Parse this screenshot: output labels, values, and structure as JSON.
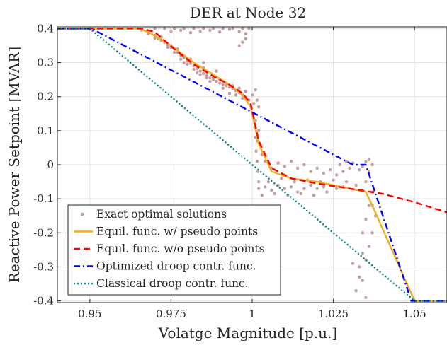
{
  "chart_data": {
    "type": "line",
    "title": "DER at Node 32",
    "xlabel": "Volatge Magnitude [p.u.]",
    "ylabel": "Reactive Power Setpoint [MVAR]",
    "xlim": [
      0.94,
      1.06
    ],
    "ylim": [
      -0.405,
      0.405
    ],
    "xticks": [
      0.95,
      0.975,
      1,
      1.025,
      1.05
    ],
    "xtick_labels": [
      "0.95",
      "0.975",
      "1",
      "1.025",
      "1.05"
    ],
    "yticks": [
      0.4,
      0.3,
      0.2,
      0.1,
      0,
      -0.1,
      -0.2,
      -0.3,
      -0.4
    ],
    "ytick_labels": [
      "0.4",
      "0.3",
      "0.2",
      "0.1",
      "0",
      "-0.1",
      "-0.2",
      "-0.3",
      "-0.4"
    ],
    "grid": true,
    "legend_position": "bottom-left",
    "series": [
      {
        "name": "Exact optimal solutions",
        "kind": "scatter",
        "color": "#C49C9C",
        "points": [
          [
            0.966,
            0.395
          ],
          [
            0.968,
            0.385
          ],
          [
            0.97,
            0.38
          ],
          [
            0.971,
            0.37
          ],
          [
            0.972,
            0.365
          ],
          [
            0.973,
            0.36
          ],
          [
            0.974,
            0.352
          ],
          [
            0.975,
            0.345
          ],
          [
            0.976,
            0.34
          ],
          [
            0.977,
            0.33
          ],
          [
            0.978,
            0.322
          ],
          [
            0.979,
            0.315
          ],
          [
            0.98,
            0.305
          ],
          [
            0.981,
            0.298
          ],
          [
            0.982,
            0.29
          ],
          [
            0.983,
            0.282
          ],
          [
            0.984,
            0.275
          ],
          [
            0.985,
            0.268
          ],
          [
            0.986,
            0.262
          ],
          [
            0.987,
            0.255
          ],
          [
            0.988,
            0.25
          ],
          [
            0.989,
            0.245
          ],
          [
            0.99,
            0.24
          ],
          [
            0.991,
            0.236
          ],
          [
            0.992,
            0.232
          ],
          [
            0.993,
            0.228
          ],
          [
            0.994,
            0.224
          ],
          [
            0.995,
            0.218
          ],
          [
            0.996,
            0.212
          ],
          [
            0.997,
            0.205
          ],
          [
            0.998,
            0.198
          ],
          [
            0.999,
            0.19
          ],
          [
            0.97,
            0.372
          ],
          [
            0.974,
            0.345
          ],
          [
            0.976,
            0.33
          ],
          [
            0.978,
            0.31
          ],
          [
            0.98,
            0.295
          ],
          [
            0.982,
            0.28
          ],
          [
            0.984,
            0.265
          ],
          [
            0.986,
            0.255
          ],
          [
            0.988,
            0.258
          ],
          [
            0.99,
            0.25
          ],
          [
            0.992,
            0.24
          ],
          [
            0.994,
            0.232
          ],
          [
            0.996,
            0.225
          ],
          [
            0.998,
            0.215
          ],
          [
            0.979,
            0.3
          ],
          [
            0.983,
            0.27
          ],
          [
            0.987,
            0.245
          ],
          [
            0.991,
            0.225
          ],
          [
            0.993,
            0.21
          ],
          [
            0.995,
            0.205
          ],
          [
            0.997,
            0.195
          ],
          [
            0.985,
            0.3
          ],
          [
            0.989,
            0.275
          ],
          [
            0.975,
            0.35
          ],
          [
            0.972,
            0.375
          ],
          [
            0.977,
            0.34
          ],
          [
            0.981,
            0.31
          ],
          [
            0.985,
            0.285
          ],
          [
            0.97,
            0.4
          ],
          [
            0.973,
            0.4
          ],
          [
            0.976,
            0.4
          ],
          [
            0.979,
            0.4
          ],
          [
            0.982,
            0.4
          ],
          [
            0.985,
            0.4
          ],
          [
            0.988,
            0.4
          ],
          [
            0.991,
            0.4
          ],
          [
            0.994,
            0.4
          ],
          [
            0.997,
            0.4
          ],
          [
            0.999,
            0.4
          ],
          [
            0.975,
            0.392
          ],
          [
            0.978,
            0.395
          ],
          [
            0.981,
            0.388
          ],
          [
            0.984,
            0.392
          ],
          [
            0.987,
            0.395
          ],
          [
            0.99,
            0.39
          ],
          [
            0.993,
            0.398
          ],
          [
            0.996,
            0.392
          ],
          [
            0.998,
            0.385
          ],
          [
            0.997,
            0.36
          ],
          [
            0.996,
            0.35
          ],
          [
            0.998,
            0.37
          ],
          [
            1.0005,
            0.15
          ],
          [
            1.0008,
            0.11
          ],
          [
            1.001,
            0.08
          ],
          [
            1.0012,
            0.04
          ],
          [
            1.0015,
            0.01
          ],
          [
            1.0018,
            -0.02
          ],
          [
            1.002,
            -0.05
          ],
          [
            1.0015,
            0.07
          ],
          [
            1.001,
            0.13
          ],
          [
            1.002,
            0.1
          ],
          [
            1.001,
            0.22
          ],
          [
            1.0015,
            0.19
          ],
          [
            1.002,
            0.17
          ],
          [
            1.0,
            0.205
          ],
          [
            1.0025,
            0.06
          ],
          [
            1.003,
            0.03
          ],
          [
            1.0005,
            0.18
          ],
          [
            1.002,
            -0.07
          ],
          [
            1.004,
            -0.065
          ],
          [
            1.006,
            -0.075
          ],
          [
            1.008,
            -0.06
          ],
          [
            1.01,
            -0.07
          ],
          [
            1.012,
            -0.065
          ],
          [
            1.014,
            -0.08
          ],
          [
            1.016,
            -0.07
          ],
          [
            1.018,
            -0.06
          ],
          [
            1.02,
            -0.07
          ],
          [
            1.022,
            -0.065
          ],
          [
            1.024,
            -0.06
          ],
          [
            1.026,
            -0.07
          ],
          [
            1.028,
            -0.065
          ],
          [
            1.003,
            -0.09
          ],
          [
            1.007,
            -0.085
          ],
          [
            1.011,
            -0.09
          ],
          [
            1.015,
            -0.085
          ],
          [
            1.019,
            -0.09
          ],
          [
            1.023,
            -0.08
          ],
          [
            1.005,
            -0.05
          ],
          [
            1.009,
            -0.04
          ],
          [
            1.013,
            -0.05
          ],
          [
            1.017,
            -0.045
          ],
          [
            1.021,
            -0.05
          ],
          [
            1.025,
            -0.045
          ],
          [
            1.029,
            -0.05
          ],
          [
            1.032,
            -0.06
          ],
          [
            1.004,
            0.01
          ],
          [
            1.006,
            -0.01
          ],
          [
            1.008,
            0.005
          ],
          [
            1.01,
            -0.005
          ],
          [
            1.012,
            0.01
          ],
          [
            1.014,
            -0.01
          ],
          [
            1.016,
            0.0
          ],
          [
            1.018,
            -0.02
          ],
          [
            1.02,
            -0.01
          ],
          [
            1.022,
            -0.025
          ],
          [
            1.024,
            -0.015
          ],
          [
            1.026,
            -0.03
          ],
          [
            1.028,
            -0.02
          ],
          [
            1.027,
            0.0
          ],
          [
            1.029,
            0.01
          ],
          [
            1.03,
            -0.01
          ],
          [
            1.031,
            0.005
          ],
          [
            1.033,
            -0.015
          ],
          [
            1.034,
            -0.005
          ],
          [
            1.035,
            0.01
          ],
          [
            1.036,
            -0.02
          ],
          [
            1.037,
            0.0
          ],
          [
            1.036,
            0.015
          ],
          [
            1.035,
            -0.05
          ],
          [
            1.037,
            -0.08
          ],
          [
            1.036,
            -0.12
          ],
          [
            1.035,
            -0.16
          ],
          [
            1.034,
            -0.2
          ],
          [
            1.034,
            -0.26
          ],
          [
            1.033,
            -0.3
          ],
          [
            1.034,
            -0.34
          ],
          [
            1.035,
            -0.39
          ],
          [
            1.032,
            -0.37
          ],
          [
            1.033,
            -0.33
          ],
          [
            1.031,
            -0.29
          ],
          [
            1.035,
            -0.28
          ],
          [
            1.036,
            -0.24
          ],
          [
            1.037,
            -0.2
          ],
          [
            1.038,
            -0.15
          ],
          [
            1.037,
            -0.12
          ]
        ]
      },
      {
        "name": "Equil. func. w/ pseudo points",
        "kind": "line",
        "color": "#EDB120",
        "dash": "solid",
        "x": [
          0.94,
          0.965,
          0.968,
          0.975,
          0.982,
          0.988,
          0.993,
          0.997,
          0.9995,
          1.0,
          1.002,
          1.006,
          1.012,
          1.02,
          1.03,
          1.035,
          1.037,
          1.05,
          1.06
        ],
        "y": [
          0.4,
          0.4,
          0.39,
          0.35,
          0.3,
          0.265,
          0.235,
          0.205,
          0.17,
          0.15,
          0.06,
          -0.02,
          -0.04,
          -0.05,
          -0.07,
          -0.08,
          -0.12,
          -0.4,
          -0.4
        ]
      },
      {
        "name": "Equil. func. w/o pseudo points",
        "kind": "line",
        "color": "#FF0000",
        "dash": "dashed",
        "x": [
          0.94,
          0.966,
          0.97,
          0.976,
          0.982,
          0.988,
          0.993,
          0.997,
          0.9995,
          1.0,
          1.002,
          1.006,
          1.012,
          1.02,
          1.03,
          1.04,
          1.05,
          1.06
        ],
        "y": [
          0.4,
          0.4,
          0.39,
          0.34,
          0.295,
          0.26,
          0.235,
          0.21,
          0.18,
          0.16,
          0.07,
          -0.01,
          -0.04,
          -0.055,
          -0.07,
          -0.085,
          -0.11,
          -0.14
        ]
      },
      {
        "name": "Optimized droop contr. func.",
        "kind": "line",
        "color": "#0000FF",
        "dash": "dashdot",
        "x": [
          0.94,
          0.9505,
          1.031,
          1.035,
          1.049,
          1.06
        ],
        "y": [
          0.4,
          0.4,
          0.0,
          0.0,
          -0.4,
          -0.4
        ]
      },
      {
        "name": "Classical droop contr. func.",
        "kind": "line",
        "color": "#008080",
        "dash": "dotted",
        "x": [
          0.94,
          0.95,
          1.05,
          1.06
        ],
        "y": [
          0.4,
          0.4,
          -0.4,
          -0.4
        ]
      }
    ]
  }
}
